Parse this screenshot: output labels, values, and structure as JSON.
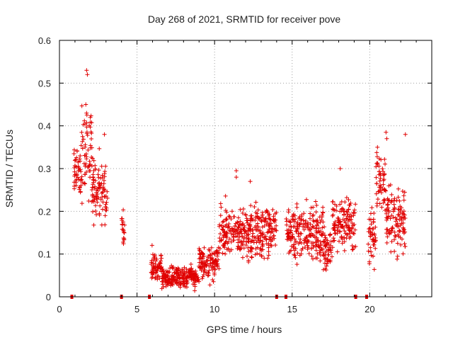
{
  "chart_data": {
    "type": "scatter",
    "title": "Day 268 of 2021, SRMTID for receiver pove",
    "xlabel": "GPS time / hours",
    "ylabel": "SRMTID / TECUs",
    "xlim": [
      0,
      24
    ],
    "ylim": [
      0,
      0.6
    ],
    "x_ticks": [
      0,
      5,
      10,
      15,
      20
    ],
    "x_tick_labels": [
      "0",
      "5",
      "10",
      "15",
      "20"
    ],
    "y_ticks": [
      0,
      0.1,
      0.2,
      0.3,
      0.4,
      0.5,
      0.6
    ],
    "y_tick_labels": [
      "0",
      "0.1",
      "0.2",
      "0.3",
      "0.4",
      "0.5",
      "0.6"
    ],
    "grid": true,
    "marker": "+",
    "color": "#e00000",
    "series": [
      {
        "name": "SRMTID",
        "segments": [
          {
            "x0": 0.9,
            "x1": 1.4,
            "mean": 0.28,
            "spread": 0.06
          },
          {
            "x0": 1.4,
            "x1": 2.1,
            "mean": 0.35,
            "spread": 0.09
          },
          {
            "x0": 2.1,
            "x1": 3.1,
            "mean": 0.25,
            "spread": 0.06
          },
          {
            "x0": 4.0,
            "x1": 4.2,
            "mean": 0.16,
            "spread": 0.04
          },
          {
            "x0": 5.9,
            "x1": 6.6,
            "mean": 0.07,
            "spread": 0.03
          },
          {
            "x0": 6.6,
            "x1": 9.0,
            "mean": 0.045,
            "spread": 0.02
          },
          {
            "x0": 9.0,
            "x1": 10.3,
            "mean": 0.08,
            "spread": 0.03
          },
          {
            "x0": 10.3,
            "x1": 14.0,
            "mean": 0.15,
            "spread": 0.05
          },
          {
            "x0": 14.6,
            "x1": 17.0,
            "mean": 0.15,
            "spread": 0.05
          },
          {
            "x0": 17.0,
            "x1": 17.6,
            "mean": 0.11,
            "spread": 0.04
          },
          {
            "x0": 17.6,
            "x1": 19.1,
            "mean": 0.17,
            "spread": 0.05
          },
          {
            "x0": 19.9,
            "x1": 20.4,
            "mean": 0.14,
            "spread": 0.05
          },
          {
            "x0": 20.4,
            "x1": 21.0,
            "mean": 0.28,
            "spread": 0.06
          },
          {
            "x0": 21.0,
            "x1": 22.3,
            "mean": 0.18,
            "spread": 0.06
          }
        ],
        "peaks": [
          {
            "x": 1.75,
            "y": 0.53
          },
          {
            "x": 1.8,
            "y": 0.52
          },
          {
            "x": 1.7,
            "y": 0.45
          },
          {
            "x": 2.9,
            "y": 0.38
          },
          {
            "x": 11.4,
            "y": 0.295
          },
          {
            "x": 11.4,
            "y": 0.28
          },
          {
            "x": 12.3,
            "y": 0.27
          },
          {
            "x": 18.1,
            "y": 0.3
          },
          {
            "x": 20.5,
            "y": 0.35
          },
          {
            "x": 21.05,
            "y": 0.385
          },
          {
            "x": 21.1,
            "y": 0.37
          },
          {
            "x": 22.3,
            "y": 0.38
          }
        ]
      }
    ],
    "data_gap_markers_x": [
      0.8,
      4.0,
      5.8,
      14.0,
      14.6,
      19.1,
      19.8
    ]
  }
}
